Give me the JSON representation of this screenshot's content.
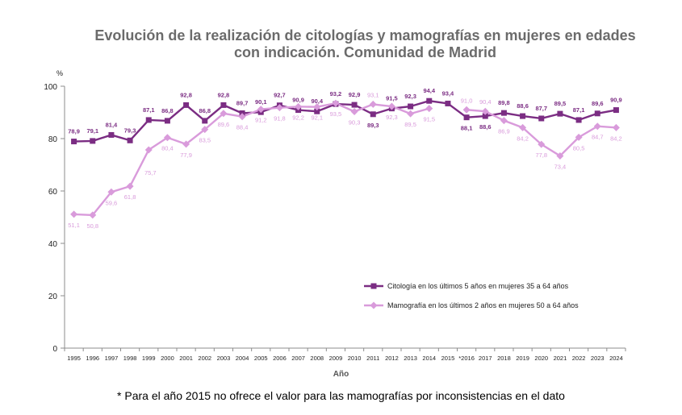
{
  "chart_data": {
    "type": "line",
    "title_line1": "Evolución de la realización de citologías y mamografías en mujeres en edades",
    "title_line2": "con indicación. Comunidad de Madrid",
    "ylabel": "%",
    "xlabel": "Año",
    "ylim": [
      0,
      100
    ],
    "yticks": [
      0,
      20,
      40,
      60,
      80,
      100
    ],
    "grid": false,
    "legend_position": "bottom-right",
    "categories": [
      "1995",
      "1996",
      "1997",
      "1998",
      "1999",
      "2000",
      "2001",
      "2002",
      "2003",
      "2004",
      "2005",
      "2006",
      "2007",
      "2008",
      "2009",
      "2010",
      "2011",
      "2012",
      "2013",
      "2014",
      "2015",
      "*2016",
      "2017",
      "2018",
      "2019",
      "2020",
      "2021",
      "2022",
      "2023",
      "2024"
    ],
    "series": [
      {
        "name": "Citología en los últimos 5 años en mujeres 35 a 64 años",
        "color": "#7B2D83",
        "marker": "square",
        "values": [
          78.9,
          79.1,
          81.4,
          79.3,
          87.1,
          86.8,
          92.8,
          86.8,
          92.8,
          89.7,
          90.1,
          92.7,
          90.9,
          90.4,
          93.2,
          92.9,
          89.3,
          91.5,
          92.3,
          94.4,
          93.4,
          88.1,
          88.6,
          89.8,
          88.6,
          87.7,
          89.5,
          87.1,
          89.6,
          90.9
        ],
        "labels": [
          "78,9",
          "79,1",
          "81,4",
          "79,3",
          "87,1",
          "86,8",
          "92,8",
          "86,8",
          "92,8",
          "89,7",
          "90,1",
          "92,7",
          "90,9",
          "90,4",
          "93,2",
          "92,9",
          "89,3",
          "91,5",
          "92,3",
          "94,4",
          "93,4",
          "88,1",
          "88,6",
          "89,8",
          "88,6",
          "87,7",
          "89,5",
          "87,1",
          "89,6",
          "90,9"
        ]
      },
      {
        "name": "Mamografía en los últimos 2 años en mujeres 50 a 64 años",
        "color": "#D99BDB",
        "marker": "diamond",
        "values": [
          51.1,
          50.8,
          59.6,
          61.8,
          75.7,
          80.4,
          77.9,
          83.5,
          89.6,
          88.4,
          91.2,
          91.8,
          92.2,
          92.1,
          93.5,
          90.3,
          93.1,
          92.3,
          89.5,
          91.5,
          null,
          91.0,
          90.4,
          86.9,
          84.2,
          77.8,
          73.4,
          80.5,
          84.7,
          84.2
        ],
        "labels": [
          "51,1",
          "50,8",
          "59,6",
          "61,8",
          "75,7",
          "80,4",
          "77,9",
          "83,5",
          "89,6",
          "88,4",
          "91,2",
          "91,8",
          "92,2",
          "92,1",
          "93,5",
          "90,3",
          "93,1",
          "92,3",
          "89,5",
          "91,5",
          null,
          "91,0",
          "90,4",
          "86,9",
          "84,2",
          "77,8",
          "73,4",
          "80,5",
          "84,7",
          "84,2"
        ]
      }
    ],
    "footnote": "* Para el año 2015 no ofrece el valor para las mamografías por inconsistencias en el dato"
  }
}
